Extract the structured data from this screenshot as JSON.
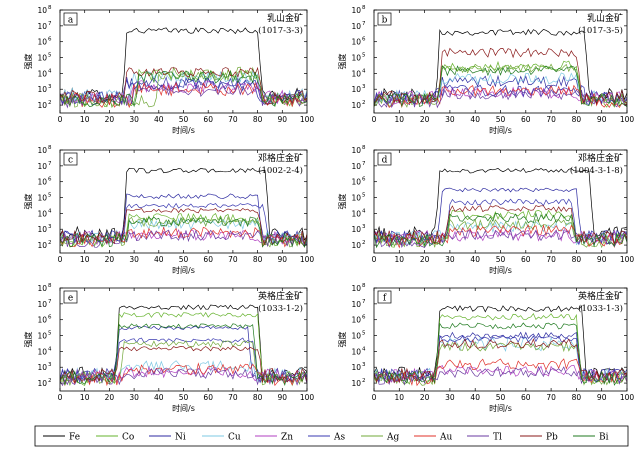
{
  "chart_data": [
    {
      "type": "line",
      "letter": "a",
      "title": "乳山金矿",
      "sample": "(1017-3-3)",
      "xlabel": "时间/s",
      "ylabel": "强度",
      "xlim": [
        0,
        100
      ],
      "ylim_log10": [
        1.5,
        8
      ],
      "yscale": "log",
      "x_step": 1,
      "series": [
        {
          "name": "Fe",
          "baseline": 400,
          "start": 27,
          "end": 80,
          "plateau": 5000000,
          "noise": 0.18
        },
        {
          "name": "Co",
          "baseline": 200,
          "start": 32,
          "end": 80,
          "plateau": 8000,
          "noise": 0.35
        },
        {
          "name": "Ni",
          "baseline": 300,
          "start": 27,
          "end": 78,
          "plateau": 2000,
          "noise": 0.4
        },
        {
          "name": "Cu",
          "baseline": 400,
          "start": 30,
          "end": 80,
          "plateau": 6000,
          "noise": 0.35
        },
        {
          "name": "Zn",
          "baseline": 300,
          "start": 30,
          "end": 80,
          "plateau": 1500,
          "noise": 0.4
        },
        {
          "name": "As",
          "baseline": 300,
          "start": 27,
          "end": 80,
          "plateau": 2500,
          "noise": 0.4
        },
        {
          "name": "Ag",
          "baseline": 200,
          "start": 40,
          "end": 80,
          "plateau": 10000,
          "noise": 0.45
        },
        {
          "name": "Au",
          "baseline": 200,
          "start": 30,
          "end": 80,
          "plateau": 1000,
          "noise": 0.4
        },
        {
          "name": "Tl",
          "baseline": 200,
          "start": 30,
          "end": 80,
          "plateau": 800,
          "noise": 0.35
        },
        {
          "name": "Pb",
          "baseline": 300,
          "start": 27,
          "end": 80,
          "plateau": 12000,
          "noise": 0.3
        },
        {
          "name": "Bi",
          "baseline": 200,
          "start": 32,
          "end": 80,
          "plateau": 6000,
          "noise": 0.4
        }
      ]
    },
    {
      "type": "line",
      "letter": "b",
      "title": "乳山金矿",
      "sample": "(1017-3-5)",
      "xlabel": "时间/s",
      "ylabel": "强度",
      "xlim": [
        0,
        100
      ],
      "ylim_log10": [
        1.5,
        8
      ],
      "yscale": "log",
      "x_step": 1,
      "series": [
        {
          "name": "Fe",
          "baseline": 400,
          "start": 26,
          "end": 83,
          "plateau": 4000000,
          "noise": 0.2
        },
        {
          "name": "Co",
          "baseline": 200,
          "start": 27,
          "end": 80,
          "plateau": 30000,
          "noise": 0.3
        },
        {
          "name": "Ni",
          "baseline": 300,
          "start": 27,
          "end": 80,
          "plateau": 3000,
          "noise": 0.35
        },
        {
          "name": "Cu",
          "baseline": 300,
          "start": 27,
          "end": 80,
          "plateau": 5000,
          "noise": 0.35
        },
        {
          "name": "Zn",
          "baseline": 300,
          "start": 27,
          "end": 80,
          "plateau": 600,
          "noise": 0.35
        },
        {
          "name": "As",
          "baseline": 300,
          "start": 26,
          "end": 82,
          "plateau": 800,
          "noise": 0.35
        },
        {
          "name": "Ag",
          "baseline": 200,
          "start": 27,
          "end": 80,
          "plateau": 20000,
          "noise": 0.3
        },
        {
          "name": "Au",
          "baseline": 200,
          "start": 27,
          "end": 80,
          "plateau": 800,
          "noise": 0.35
        },
        {
          "name": "Tl",
          "baseline": 200,
          "start": 27,
          "end": 80,
          "plateau": 500,
          "noise": 0.35
        },
        {
          "name": "Pb",
          "baseline": 300,
          "start": 27,
          "end": 80,
          "plateau": 200000,
          "noise": 0.3
        },
        {
          "name": "Bi",
          "baseline": 200,
          "start": 27,
          "end": 80,
          "plateau": 15000,
          "noise": 0.3
        }
      ]
    },
    {
      "type": "line",
      "letter": "c",
      "title": "邓格庄金矿",
      "sample": "(1002-2-4)",
      "xlabel": "时间/s",
      "ylabel": "强度",
      "xlim": [
        0,
        100
      ],
      "ylim_log10": [
        1.5,
        8
      ],
      "yscale": "log",
      "x_step": 1,
      "series": [
        {
          "name": "Fe",
          "baseline": 500,
          "start": 27,
          "end": 83,
          "plateau": 5000000,
          "noise": 0.15
        },
        {
          "name": "Co",
          "baseline": 200,
          "start": 28,
          "end": 80,
          "plateau": 5000,
          "noise": 0.3
        },
        {
          "name": "Ni",
          "baseline": 300,
          "start": 27,
          "end": 80,
          "plateau": 120000,
          "noise": 0.15
        },
        {
          "name": "Cu",
          "baseline": 300,
          "start": 28,
          "end": 80,
          "plateau": 2000,
          "noise": 0.35
        },
        {
          "name": "Zn",
          "baseline": 300,
          "start": 28,
          "end": 80,
          "plateau": 400,
          "noise": 0.35
        },
        {
          "name": "As",
          "baseline": 300,
          "start": 27,
          "end": 82,
          "plateau": 30000,
          "noise": 0.15
        },
        {
          "name": "Ag",
          "baseline": 200,
          "start": 28,
          "end": 80,
          "plateau": 3000,
          "noise": 0.3
        },
        {
          "name": "Au",
          "baseline": 200,
          "start": 28,
          "end": 80,
          "plateau": 600,
          "noise": 0.35
        },
        {
          "name": "Tl",
          "baseline": 200,
          "start": 28,
          "end": 80,
          "plateau": 400,
          "noise": 0.35
        },
        {
          "name": "Pb",
          "baseline": 300,
          "start": 27,
          "end": 80,
          "plateau": 15000,
          "noise": 0.15
        },
        {
          "name": "Bi",
          "baseline": 200,
          "start": 28,
          "end": 80,
          "plateau": 3000,
          "noise": 0.3
        }
      ]
    },
    {
      "type": "line",
      "letter": "d",
      "title": "邓格庄金矿",
      "sample": "(1004-3-1-8)",
      "xlabel": "时间/s",
      "ylabel": "强度",
      "xlim": [
        0,
        100
      ],
      "ylim_log10": [
        1.5,
        8
      ],
      "yscale": "log",
      "x_step": 1,
      "series": [
        {
          "name": "Fe",
          "baseline": 500,
          "start": 26,
          "end": 85,
          "plateau": 5000000,
          "noise": 0.15
        },
        {
          "name": "Co",
          "baseline": 200,
          "start": 30,
          "end": 78,
          "plateau": 8000,
          "noise": 0.3
        },
        {
          "name": "Ni",
          "baseline": 300,
          "start": 27,
          "end": 80,
          "plateau": 300000,
          "noise": 0.12
        },
        {
          "name": "Cu",
          "baseline": 300,
          "start": 30,
          "end": 78,
          "plateau": 1500,
          "noise": 0.35
        },
        {
          "name": "Zn",
          "baseline": 300,
          "start": 30,
          "end": 78,
          "plateau": 400,
          "noise": 0.35
        },
        {
          "name": "As",
          "baseline": 300,
          "start": 30,
          "end": 78,
          "plateau": 50000,
          "noise": 0.2
        },
        {
          "name": "Ag",
          "baseline": 200,
          "start": 30,
          "end": 78,
          "plateau": 2000,
          "noise": 0.35
        },
        {
          "name": "Au",
          "baseline": 200,
          "start": 30,
          "end": 78,
          "plateau": 800,
          "noise": 0.35
        },
        {
          "name": "Tl",
          "baseline": 200,
          "start": 30,
          "end": 78,
          "plateau": 400,
          "noise": 0.35
        },
        {
          "name": "Pb",
          "baseline": 300,
          "start": 30,
          "end": 78,
          "plateau": 20000,
          "noise": 0.2
        },
        {
          "name": "Bi",
          "baseline": 200,
          "start": 30,
          "end": 78,
          "plateau": 5000,
          "noise": 0.3
        }
      ]
    },
    {
      "type": "line",
      "letter": "e",
      "title": "英格庄金矿",
      "sample": "(1033-1-2)",
      "xlabel": "时间/s",
      "ylabel": "强度",
      "xlim": [
        0,
        100
      ],
      "ylim_log10": [
        1.5,
        8
      ],
      "yscale": "log",
      "x_step": 1,
      "series": [
        {
          "name": "Fe",
          "baseline": 400,
          "start": 24,
          "end": 80,
          "plateau": 6000000,
          "noise": 0.15
        },
        {
          "name": "Co",
          "baseline": 200,
          "start": 24,
          "end": 80,
          "plateau": 2000000,
          "noise": 0.15
        },
        {
          "name": "Ni",
          "baseline": 300,
          "start": 24,
          "end": 76,
          "plateau": 300000,
          "noise": 0.12
        },
        {
          "name": "Cu",
          "baseline": 300,
          "start": 26,
          "end": 78,
          "plateau": 1200,
          "noise": 0.35
        },
        {
          "name": "Zn",
          "baseline": 300,
          "start": 26,
          "end": 78,
          "plateau": 500,
          "noise": 0.35
        },
        {
          "name": "As",
          "baseline": 300,
          "start": 24,
          "end": 78,
          "plateau": 50000,
          "noise": 0.15
        },
        {
          "name": "Ag",
          "baseline": 200,
          "start": 26,
          "end": 78,
          "plateau": 30000,
          "noise": 0.2
        },
        {
          "name": "Au",
          "baseline": 200,
          "start": 26,
          "end": 78,
          "plateau": 800,
          "noise": 0.35
        },
        {
          "name": "Tl",
          "baseline": 200,
          "start": 26,
          "end": 78,
          "plateau": 400,
          "noise": 0.35
        },
        {
          "name": "Pb",
          "baseline": 300,
          "start": 24,
          "end": 80,
          "plateau": 15000,
          "noise": 0.15
        },
        {
          "name": "Bi",
          "baseline": 200,
          "start": 24,
          "end": 78,
          "plateau": 400000,
          "noise": 0.15
        }
      ]
    },
    {
      "type": "line",
      "letter": "f",
      "title": "英格庄金矿",
      "sample": "(1033-1-3)",
      "xlabel": "时间/s",
      "ylabel": "强度",
      "xlim": [
        0,
        100
      ],
      "ylim_log10": [
        1.5,
        8
      ],
      "yscale": "log",
      "x_step": 1,
      "series": [
        {
          "name": "Fe",
          "baseline": 400,
          "start": 26,
          "end": 82,
          "plateau": 5000000,
          "noise": 0.2
        },
        {
          "name": "Co",
          "baseline": 200,
          "start": 26,
          "end": 80,
          "plateau": 1500000,
          "noise": 0.2
        },
        {
          "name": "Ni",
          "baseline": 300,
          "start": 26,
          "end": 80,
          "plateau": 100000,
          "noise": 0.2
        },
        {
          "name": "Cu",
          "baseline": 300,
          "start": 26,
          "end": 80,
          "plateau": 30000,
          "noise": 0.45
        },
        {
          "name": "Zn",
          "baseline": 300,
          "start": 26,
          "end": 80,
          "plateau": 600,
          "noise": 0.35
        },
        {
          "name": "As",
          "baseline": 300,
          "start": 26,
          "end": 80,
          "plateau": 60000,
          "noise": 0.2
        },
        {
          "name": "Ag",
          "baseline": 200,
          "start": 26,
          "end": 80,
          "plateau": 20000,
          "noise": 0.3
        },
        {
          "name": "Au",
          "baseline": 200,
          "start": 26,
          "end": 80,
          "plateau": 1500,
          "noise": 0.35
        },
        {
          "name": "Tl",
          "baseline": 200,
          "start": 26,
          "end": 80,
          "plateau": 500,
          "noise": 0.35
        },
        {
          "name": "Pb",
          "baseline": 300,
          "start": 26,
          "end": 80,
          "plateau": 30000,
          "noise": 0.3
        },
        {
          "name": "Bi",
          "baseline": 200,
          "start": 26,
          "end": 80,
          "plateau": 400000,
          "noise": 0.2
        }
      ]
    }
  ],
  "legend": [
    {
      "name": "Fe",
      "color": "#000000"
    },
    {
      "name": "Co",
      "color": "#66b32e"
    },
    {
      "name": "Ni",
      "color": "#2c2aa0"
    },
    {
      "name": "Cu",
      "color": "#7ec8e3"
    },
    {
      "name": "Zn",
      "color": "#b03fc0"
    },
    {
      "name": "As",
      "color": "#3a3ab0"
    },
    {
      "name": "Ag",
      "color": "#72a83a"
    },
    {
      "name": "Au",
      "color": "#e0302a"
    },
    {
      "name": "Tl",
      "color": "#6a3aa0"
    },
    {
      "name": "Pb",
      "color": "#8a1a1a"
    },
    {
      "name": "Bi",
      "color": "#1f7a1f"
    }
  ],
  "x_ticks": [
    "0",
    "10",
    "20",
    "30",
    "40",
    "50",
    "60",
    "70",
    "80",
    "90",
    "100"
  ],
  "y_ticks": [
    "10",
    "10",
    "10",
    "10",
    "10",
    "10",
    "10"
  ],
  "y_tick_exponents": [
    "2",
    "3",
    "4",
    "5",
    "6",
    "7",
    "8"
  ]
}
